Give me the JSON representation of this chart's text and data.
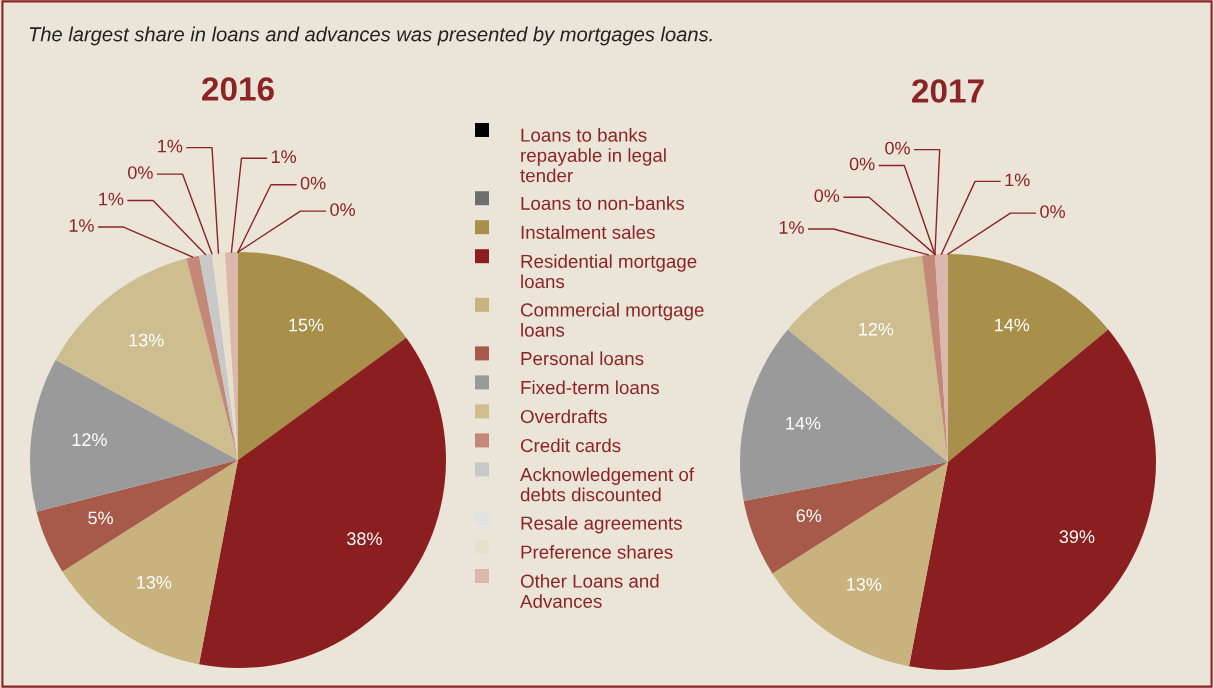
{
  "chart_data": [
    {
      "type": "pie",
      "title": "2016",
      "legend": "right",
      "annotations": [
        "The largest share in loans and advances was presented by mortgages loans."
      ],
      "categories": [
        "Loans to banks repayable in legal tender",
        "Loans to non-banks",
        "Instalment sales",
        "Residential mortgage loans",
        "Commercial mortgage loans",
        "Personal loans",
        "Fixed-term loans",
        "Overdrafts",
        "Credit cards",
        "Acknowledgement of debts discounted",
        "Resale agreements",
        "Preference shares",
        "Other Loans and Advances"
      ],
      "values": [
        0,
        0,
        15,
        38,
        13,
        5,
        12,
        13,
        1,
        1,
        0,
        1,
        1
      ],
      "colors": [
        "#000000",
        "#6e6e6e",
        "#a8904a",
        "#8b1f1f",
        "#c8b27e",
        "#a85a4a",
        "#9a9a9a",
        "#cdbd8f",
        "#c48878",
        "#c8c8c8",
        "#e2e2e2",
        "#e8e0cc",
        "#dcb8ac"
      ],
      "value_labels": [
        "0%",
        "0%",
        "15%",
        "38%",
        "13%",
        "5%",
        "12%",
        "13%",
        "1%",
        "1%",
        "0%",
        "1%",
        "1%"
      ]
    },
    {
      "type": "pie",
      "title": "2017",
      "categories": [
        null,
        null,
        null,
        null,
        null,
        null,
        null,
        null,
        null,
        null,
        null,
        null,
        null
      ],
      "values": [
        0,
        0,
        14,
        39,
        13,
        6,
        14,
        12,
        1,
        0,
        0,
        0,
        1
      ],
      "colors": [
        "#000000",
        "#6e6e6e",
        "#a8904a",
        "#8b1f1f",
        "#c8b27e",
        "#a85a4a",
        "#9a9a9a",
        "#cdbd8f",
        "#c48878",
        "#c8c8c8",
        "#e2e2e2",
        "#e8e0cc",
        "#dcb8ac"
      ],
      "value_labels": [
        null,
        "0%",
        "14%",
        "39%",
        "13%",
        "6%",
        "14%",
        "12%",
        "1%",
        "0%",
        "0%",
        "0%",
        "1%"
      ]
    }
  ]
}
